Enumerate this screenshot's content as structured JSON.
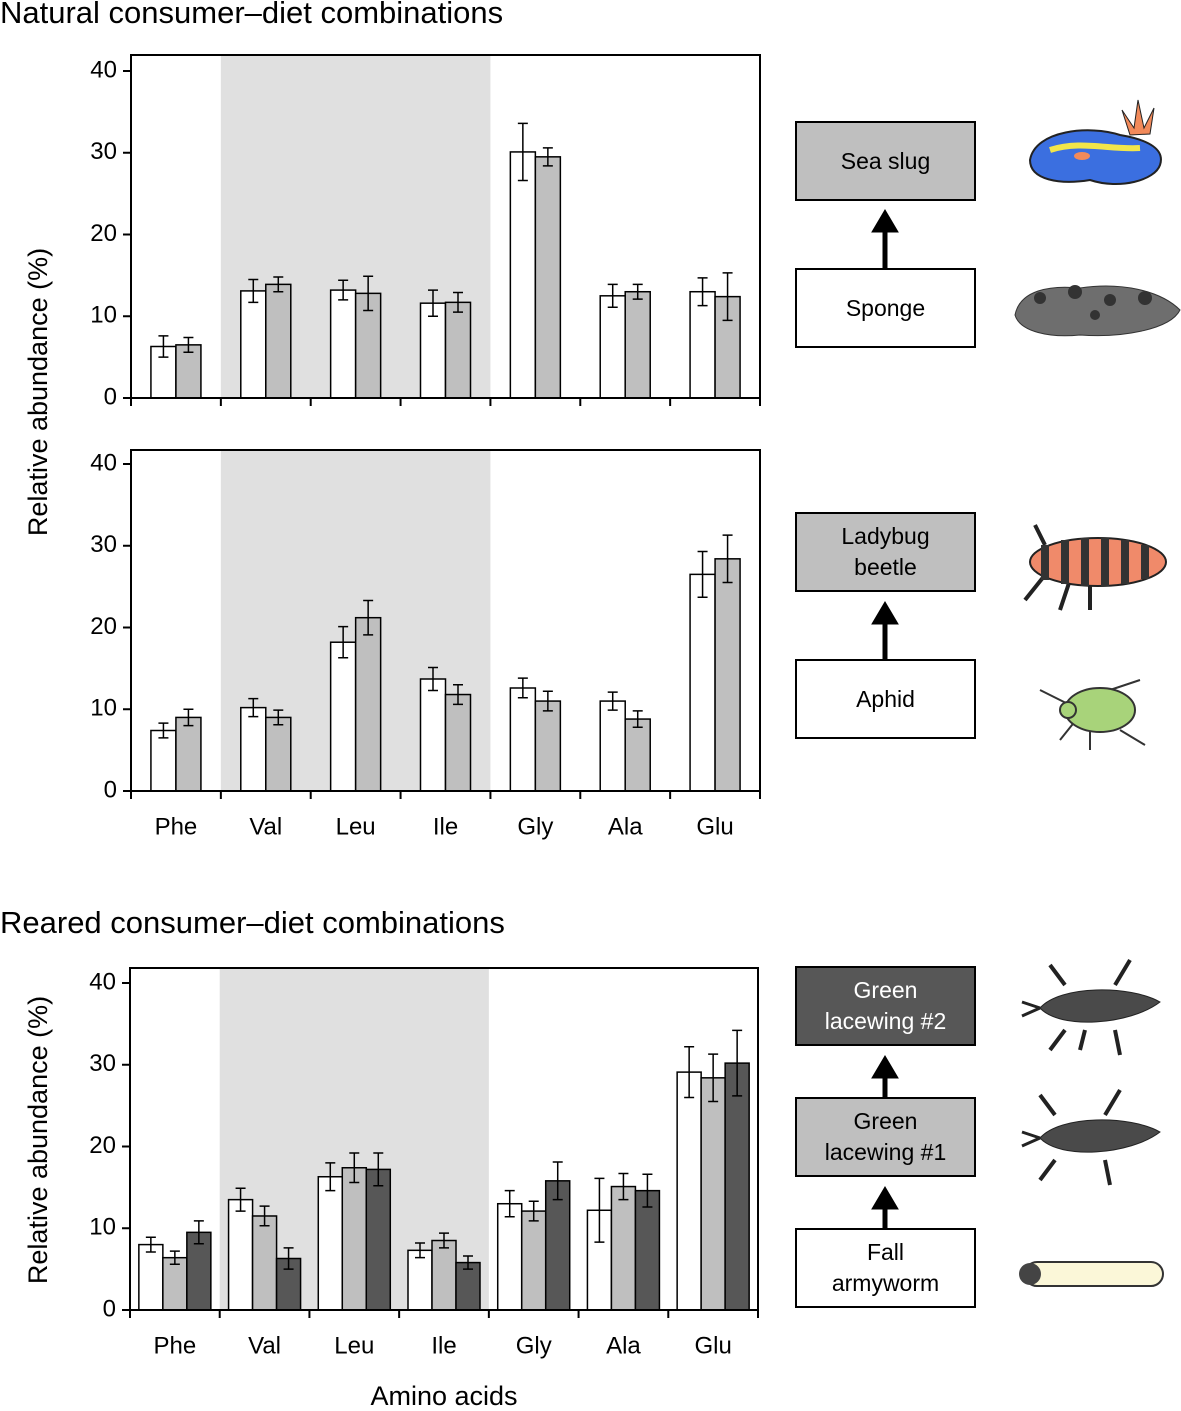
{
  "chart_data": [
    {
      "type": "bar",
      "title": "Natural consumer–diet combinations",
      "ylabel": "Relative abundance (%)",
      "categories": [
        null,
        null,
        null,
        null,
        null,
        null,
        null
      ],
      "ylim": [
        0,
        40
      ],
      "yticks": [
        0,
        10,
        20,
        30,
        40
      ],
      "shade_range": [
        1,
        3
      ],
      "series": [
        {
          "name": "Sponge",
          "color": "#ffffff",
          "values": [
            6.3,
            13.1,
            13.2,
            11.6,
            30.1,
            12.5,
            13.0
          ],
          "errors": [
            1.3,
            1.4,
            1.2,
            1.6,
            3.5,
            1.4,
            1.7
          ]
        },
        {
          "name": "Sea slug",
          "color": "#bfbfbf",
          "values": [
            6.5,
            13.9,
            12.8,
            11.7,
            29.5,
            13.0,
            12.4
          ],
          "errors": [
            0.9,
            0.9,
            2.1,
            1.2,
            1.1,
            0.9,
            2.9
          ]
        }
      ]
    },
    {
      "type": "bar",
      "categories": [
        "Phe",
        "Val",
        "Leu",
        "Ile",
        "Gly",
        "Ala",
        "Glu"
      ],
      "ylim": [
        0,
        40
      ],
      "yticks": [
        0,
        10,
        20,
        30,
        40
      ],
      "shade_range": [
        1,
        3
      ],
      "series": [
        {
          "name": "Aphid",
          "color": "#ffffff",
          "values": [
            7.4,
            10.2,
            18.2,
            13.7,
            12.6,
            11.0,
            26.5
          ],
          "errors": [
            0.9,
            1.1,
            1.9,
            1.4,
            1.2,
            1.1,
            2.8
          ]
        },
        {
          "name": "Ladybug beetle",
          "color": "#bfbfbf",
          "values": [
            9.0,
            9.0,
            21.2,
            11.8,
            11.0,
            8.8,
            28.4
          ],
          "errors": [
            1.0,
            0.9,
            2.1,
            1.2,
            1.2,
            1.0,
            2.9
          ]
        }
      ]
    },
    {
      "type": "bar",
      "title": "Reared consumer–diet combinations",
      "ylabel": "Relative abundance (%)",
      "xlabel": "Amino acids",
      "categories": [
        "Phe",
        "Val",
        "Leu",
        "Ile",
        "Gly",
        "Ala",
        "Glu"
      ],
      "ylim": [
        0,
        40
      ],
      "yticks": [
        0,
        10,
        20,
        30,
        40
      ],
      "shade_range": [
        1,
        3
      ],
      "series": [
        {
          "name": "Fall armyworm",
          "color": "#ffffff",
          "values": [
            8.0,
            13.5,
            16.3,
            7.3,
            13.0,
            12.2,
            29.1
          ],
          "errors": [
            0.9,
            1.4,
            1.7,
            0.9,
            1.6,
            3.9,
            3.1
          ]
        },
        {
          "name": "Green lacewing #1",
          "color": "#bfbfbf",
          "values": [
            6.4,
            11.5,
            17.4,
            8.5,
            12.1,
            15.1,
            28.4
          ],
          "errors": [
            0.8,
            1.2,
            1.8,
            0.9,
            1.2,
            1.6,
            2.9
          ]
        },
        {
          "name": "Green lacewing #2",
          "color": "#575757",
          "values": [
            9.5,
            6.3,
            17.2,
            5.8,
            15.8,
            14.6,
            30.2
          ],
          "errors": [
            1.4,
            1.3,
            2.0,
            0.8,
            2.3,
            2.0,
            4.0
          ]
        }
      ]
    }
  ]
}
